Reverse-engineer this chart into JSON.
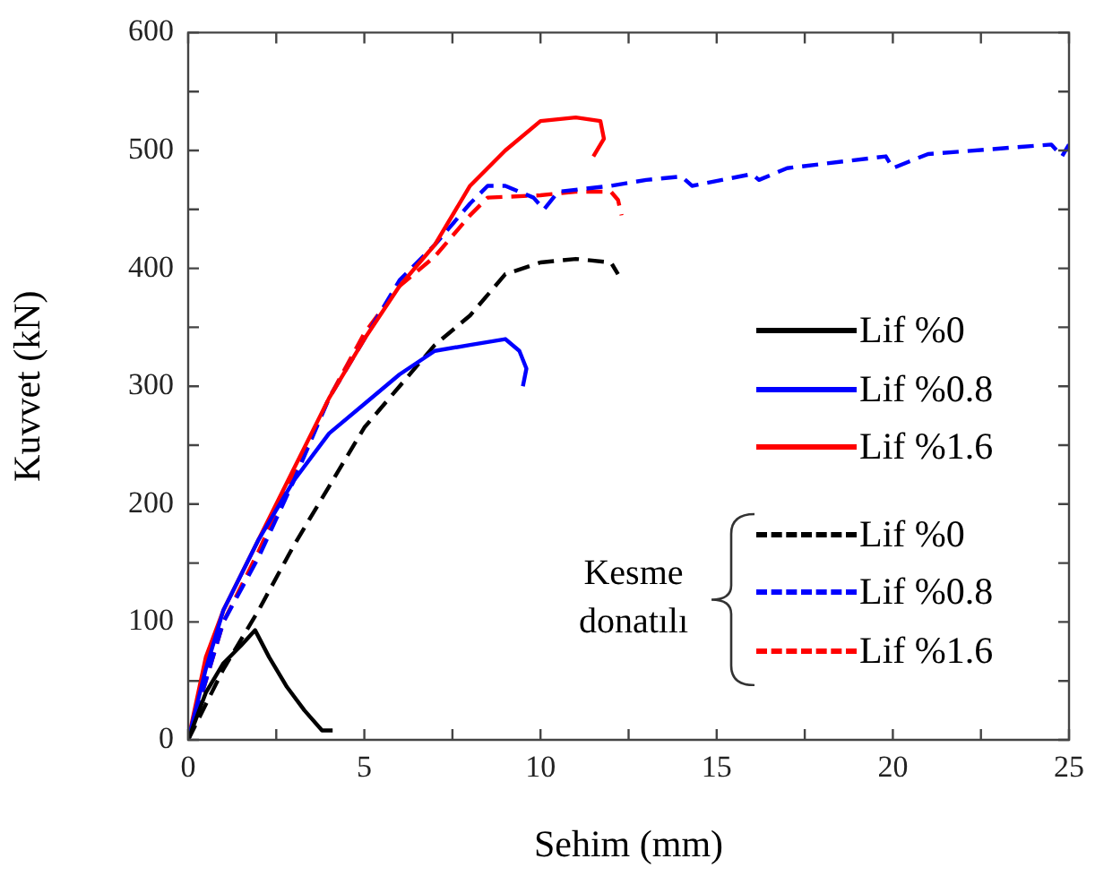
{
  "chart_data": {
    "type": "line",
    "xlabel": "Sehim (mm)",
    "ylabel": "Kuvvet (kN)",
    "xlim": [
      0,
      25
    ],
    "ylim": [
      0,
      600
    ],
    "xticks": [
      0,
      {
        "value": 2.5,
        "label": null
      },
      5,
      {
        "value": 7.5,
        "label": null
      },
      10,
      {
        "value": 12.5,
        "label": null
      },
      15,
      {
        "value": 17.5,
        "label": null
      },
      20,
      {
        "value": 22.5,
        "label": null
      },
      25
    ],
    "yticks": [
      0,
      {
        "value": 50,
        "label": null
      },
      100,
      {
        "value": 150,
        "label": null
      },
      200,
      {
        "value": 250,
        "label": null
      },
      300,
      {
        "value": 350,
        "label": null
      },
      400,
      {
        "value": 450,
        "label": null
      },
      500,
      {
        "value": 550,
        "label": null
      },
      600
    ],
    "grid": false,
    "legend": "bottom right",
    "marker": "none",
    "annotations": [
      "Kesme donatılı"
    ],
    "series": [
      {
        "name": "Lif %0",
        "color": "#000000",
        "line_style": "solid",
        "x": [
          0,
          0.5,
          1,
          1.5,
          1.9,
          2.3,
          2.8,
          3.3,
          3.8,
          4.1
        ],
        "values": [
          0,
          40,
          65,
          80,
          93,
          70,
          45,
          25,
          8,
          8
        ]
      },
      {
        "name": "Lif %0.8",
        "color": "#0000ff",
        "line_style": "solid",
        "x": [
          0,
          0.5,
          1,
          2,
          3,
          4,
          5,
          6,
          7,
          8,
          9,
          9.4,
          9.6,
          9.5
        ],
        "values": [
          0,
          60,
          110,
          170,
          220,
          260,
          285,
          310,
          330,
          335,
          340,
          330,
          315,
          300
        ]
      },
      {
        "name": "Lif %1.6",
        "color": "#ff0000",
        "line_style": "solid",
        "x": [
          0,
          0.5,
          1,
          2,
          3,
          4,
          5,
          6,
          7,
          8,
          9,
          10,
          11,
          11.7,
          11.8,
          11.5
        ],
        "values": [
          0,
          70,
          110,
          170,
          230,
          290,
          340,
          385,
          420,
          470,
          500,
          525,
          528,
          525,
          510,
          495
        ]
      },
      {
        "name": "Lif %0",
        "color": "#000000",
        "line_style": "dashed",
        "x": [
          0,
          1,
          2,
          3,
          4,
          5,
          6,
          7,
          8,
          9,
          10,
          11,
          12,
          12.2
        ],
        "values": [
          0,
          60,
          110,
          165,
          215,
          265,
          300,
          335,
          360,
          395,
          405,
          408,
          405,
          395
        ]
      },
      {
        "name": "Lif %0.8",
        "color": "#0000ff",
        "line_style": "dashed",
        "x": [
          0,
          1,
          2,
          3,
          4,
          5,
          6,
          7,
          8,
          8.5,
          9,
          9.8,
          10.1,
          10.5,
          12,
          13,
          14,
          14.3,
          16,
          16.2,
          17,
          19.8,
          20,
          21,
          24.5,
          24.8,
          25
        ],
        "values": [
          0,
          100,
          155,
          220,
          290,
          340,
          390,
          420,
          455,
          470,
          470,
          460,
          450,
          465,
          470,
          475,
          478,
          470,
          480,
          475,
          485,
          495,
          485,
          497,
          505,
          495,
          505
        ]
      },
      {
        "name": "Lif %1.6",
        "color": "#ff0000",
        "line_style": "dashed",
        "x": [
          0,
          1,
          2,
          3,
          4,
          5,
          6,
          7,
          8,
          8.5,
          10,
          11,
          12,
          12.2,
          12.3
        ],
        "values": [
          0,
          100,
          160,
          225,
          290,
          345,
          385,
          410,
          445,
          460,
          462,
          465,
          465,
          458,
          445
        ]
      }
    ]
  }
}
